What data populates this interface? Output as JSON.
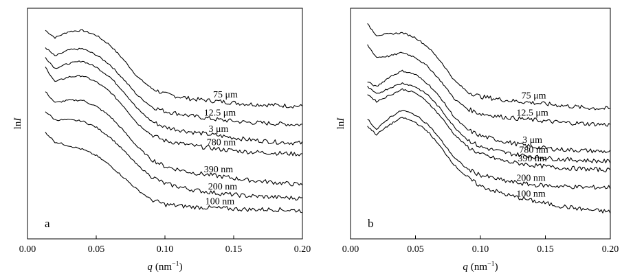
{
  "chart_data": [
    {
      "type": "line",
      "panel_label": "a",
      "xlabel_var": "q",
      "xlabel_unit": "(nm",
      "xlabel_exp": "−1",
      "xlabel_close": ")",
      "ylabel_prefix": "ln",
      "ylabel_var": "I",
      "xlim": [
        0.0,
        0.2
      ],
      "xticks": [
        "0.00",
        "0.05",
        "0.10",
        "0.15",
        "0.20"
      ],
      "yticks": [],
      "grid": false,
      "y_scale": "arbitrary (curves vertically offset)",
      "series": [
        {
          "name": "75 μm",
          "x": [
            0.013,
            0.02,
            0.03,
            0.04,
            0.05,
            0.06,
            0.07,
            0.08,
            0.09,
            0.1,
            0.12,
            0.14,
            0.16,
            0.18,
            0.2
          ],
          "y": [
            9.1,
            8.8,
            9.05,
            9.1,
            8.9,
            8.5,
            7.9,
            7.2,
            6.75,
            6.5,
            6.3,
            6.2,
            6.1,
            6.05,
            6.0
          ]
        },
        {
          "name": "12.5 μm",
          "x": [
            0.013,
            0.02,
            0.03,
            0.04,
            0.05,
            0.06,
            0.07,
            0.08,
            0.09,
            0.1,
            0.12,
            0.14,
            0.16,
            0.18,
            0.2
          ],
          "y": [
            8.4,
            8.05,
            8.3,
            8.35,
            8.1,
            7.7,
            7.1,
            6.45,
            6.0,
            5.8,
            5.6,
            5.45,
            5.35,
            5.3,
            5.25
          ]
        },
        {
          "name": "3 μm",
          "x": [
            0.013,
            0.02,
            0.03,
            0.04,
            0.05,
            0.06,
            0.07,
            0.08,
            0.09,
            0.1,
            0.12,
            0.14,
            0.16,
            0.18,
            0.2
          ],
          "y": [
            8.0,
            7.55,
            7.75,
            7.85,
            7.6,
            7.2,
            6.6,
            5.9,
            5.4,
            5.15,
            4.95,
            4.8,
            4.65,
            4.55,
            4.5
          ]
        },
        {
          "name": "780 nm",
          "x": [
            0.013,
            0.02,
            0.03,
            0.04,
            0.05,
            0.06,
            0.07,
            0.08,
            0.09,
            0.1,
            0.12,
            0.14,
            0.16,
            0.18,
            0.2
          ],
          "y": [
            7.6,
            7.0,
            7.2,
            7.25,
            7.0,
            6.6,
            6.0,
            5.3,
            4.85,
            4.6,
            4.4,
            4.25,
            4.15,
            4.1,
            4.05
          ]
        },
        {
          "name": "390 nm",
          "x": [
            0.013,
            0.02,
            0.03,
            0.04,
            0.05,
            0.06,
            0.07,
            0.08,
            0.09,
            0.1,
            0.12,
            0.14,
            0.16,
            0.18,
            0.2
          ],
          "y": [
            6.6,
            6.15,
            6.25,
            6.25,
            6.0,
            5.6,
            5.0,
            4.35,
            3.85,
            3.55,
            3.3,
            3.15,
            3.0,
            2.9,
            2.8
          ]
        },
        {
          "name": "200 nm",
          "x": [
            0.013,
            0.02,
            0.03,
            0.04,
            0.05,
            0.06,
            0.07,
            0.08,
            0.09,
            0.1,
            0.12,
            0.14,
            0.16,
            0.18,
            0.2
          ],
          "y": [
            5.8,
            5.45,
            5.45,
            5.4,
            5.15,
            4.75,
            4.2,
            3.6,
            3.15,
            2.85,
            2.6,
            2.45,
            2.35,
            2.3,
            2.25
          ]
        },
        {
          "name": "100 nm",
          "x": [
            0.013,
            0.02,
            0.03,
            0.04,
            0.05,
            0.06,
            0.07,
            0.08,
            0.09,
            0.1,
            0.12,
            0.14,
            0.16,
            0.18,
            0.2
          ],
          "y": [
            4.95,
            4.55,
            4.4,
            4.25,
            4.0,
            3.6,
            3.1,
            2.6,
            2.2,
            2.0,
            1.9,
            1.85,
            1.8,
            1.8,
            1.75
          ]
        }
      ]
    },
    {
      "type": "line",
      "panel_label": "b",
      "xlabel_var": "q",
      "xlabel_unit": "(nm",
      "xlabel_exp": "−1",
      "xlabel_close": ")",
      "ylabel_prefix": "ln",
      "ylabel_var": "I",
      "xlim": [
        0.0,
        0.2
      ],
      "xticks": [
        "0.00",
        "0.05",
        "0.10",
        "0.15",
        "0.20"
      ],
      "yticks": [],
      "grid": false,
      "y_scale": "arbitrary (curves vertically offset)",
      "series": [
        {
          "name": "75 μm",
          "x": [
            0.013,
            0.02,
            0.03,
            0.04,
            0.05,
            0.06,
            0.07,
            0.08,
            0.09,
            0.1,
            0.12,
            0.14,
            0.16,
            0.18,
            0.2
          ],
          "y": [
            9.35,
            8.9,
            8.95,
            9.0,
            8.8,
            8.4,
            7.8,
            7.05,
            6.6,
            6.4,
            6.25,
            6.15,
            6.05,
            5.95,
            5.9
          ]
        },
        {
          "name": "12.5 μm",
          "x": [
            0.013,
            0.02,
            0.03,
            0.04,
            0.05,
            0.06,
            0.07,
            0.08,
            0.09,
            0.1,
            0.12,
            0.14,
            0.16,
            0.18,
            0.2
          ],
          "y": [
            8.5,
            8.0,
            8.05,
            8.2,
            8.0,
            7.6,
            7.0,
            6.3,
            5.9,
            5.7,
            5.55,
            5.45,
            5.35,
            5.3,
            5.25
          ]
        },
        {
          "name": "3 μm",
          "x": [
            0.013,
            0.02,
            0.03,
            0.04,
            0.05,
            0.06,
            0.07,
            0.08,
            0.09,
            0.1,
            0.12,
            0.14,
            0.16,
            0.18,
            0.2
          ],
          "y": [
            7.0,
            6.8,
            7.2,
            7.45,
            7.3,
            6.9,
            6.3,
            5.55,
            5.05,
            4.8,
            4.55,
            4.35,
            4.25,
            4.2,
            4.15
          ]
        },
        {
          "name": "780 nm",
          "x": [
            0.013,
            0.02,
            0.03,
            0.04,
            0.05,
            0.06,
            0.07,
            0.08,
            0.09,
            0.1,
            0.12,
            0.14,
            0.16,
            0.18,
            0.2
          ],
          "y": [
            6.8,
            6.5,
            6.75,
            6.95,
            6.8,
            6.45,
            5.85,
            5.15,
            4.65,
            4.35,
            4.1,
            3.95,
            3.85,
            3.8,
            3.75
          ]
        },
        {
          "name": "390 nm",
          "x": [
            0.013,
            0.02,
            0.03,
            0.04,
            0.05,
            0.06,
            0.07,
            0.08,
            0.09,
            0.1,
            0.12,
            0.14,
            0.16,
            0.18,
            0.2
          ],
          "y": [
            6.5,
            6.2,
            6.45,
            6.7,
            6.55,
            6.15,
            5.55,
            4.85,
            4.35,
            4.05,
            3.75,
            3.6,
            3.5,
            3.45,
            3.4
          ]
        },
        {
          "name": "200 nm",
          "x": [
            0.013,
            0.02,
            0.03,
            0.04,
            0.05,
            0.06,
            0.07,
            0.08,
            0.09,
            0.1,
            0.12,
            0.14,
            0.16,
            0.18,
            0.2
          ],
          "y": [
            5.5,
            5.05,
            5.55,
            5.85,
            5.65,
            5.25,
            4.6,
            3.9,
            3.45,
            3.2,
            2.95,
            2.8,
            2.75,
            2.7,
            2.7
          ]
        },
        {
          "name": "100 nm",
          "x": [
            0.013,
            0.02,
            0.03,
            0.04,
            0.05,
            0.06,
            0.07,
            0.08,
            0.09,
            0.1,
            0.12,
            0.14,
            0.16,
            0.18,
            0.2
          ],
          "y": [
            5.2,
            4.85,
            5.25,
            5.55,
            5.35,
            4.95,
            4.3,
            3.6,
            3.1,
            2.75,
            2.4,
            2.15,
            1.95,
            1.8,
            1.7
          ]
        }
      ]
    }
  ]
}
